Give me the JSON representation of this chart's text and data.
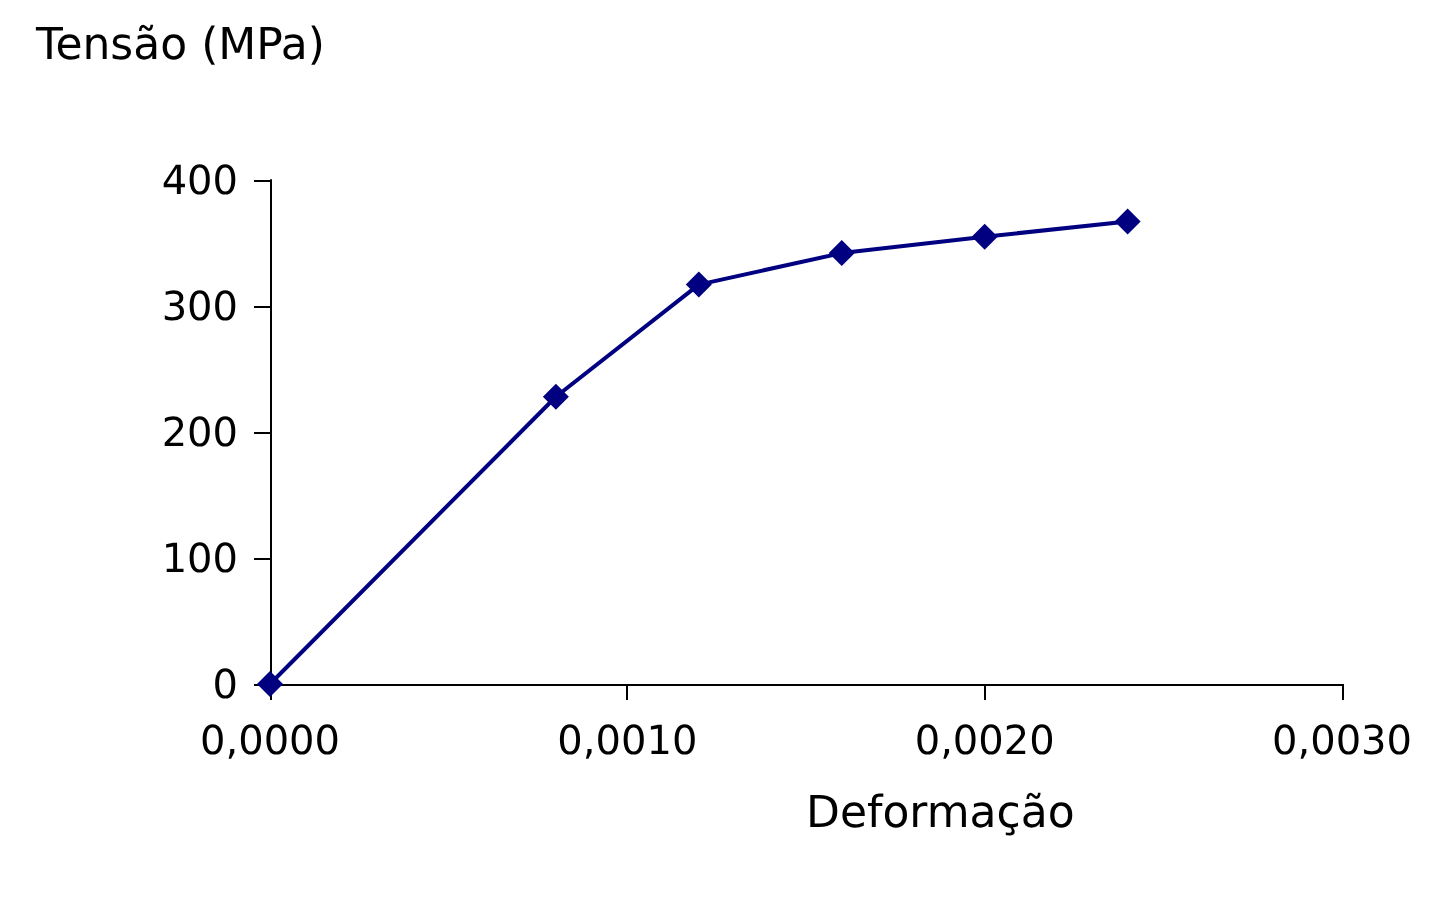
{
  "chart_data": {
    "type": "line",
    "xlabel": "Deformação",
    "ylabel": "Tensão (MPa)",
    "x": [
      0,
      0.0008,
      0.0012,
      0.0016,
      0.002,
      0.0024
    ],
    "series": [
      {
        "color": "#000080",
        "values": [
          0,
          228,
          317,
          342,
          355,
          367
        ]
      }
    ],
    "xlim": [
      0,
      0.003
    ],
    "xticks": [
      {
        "value": 0,
        "label": "0,0000"
      },
      {
        "value": 0.001,
        "label": "0,0010"
      },
      {
        "value": 0.002,
        "label": "0,0020"
      },
      {
        "value": 0.003,
        "label": "0,0030"
      }
    ],
    "ylim": [
      0,
      400
    ],
    "yticks": [
      0,
      100,
      200,
      300,
      400
    ],
    "marker": "diamond",
    "line_style": "solid"
  }
}
